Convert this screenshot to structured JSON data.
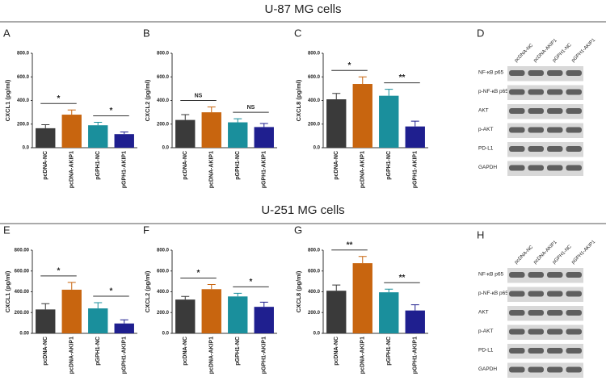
{
  "sections": [
    "U-87 MG cells",
    "U-251 MG cells"
  ],
  "chart_data": [
    {
      "type": "bar",
      "panel": "A",
      "ylabel": "CXCL1 (pg/ml)",
      "categories": [
        "pcDNA-NC",
        "pcDNA-AKIP1",
        "pGPH1-NC",
        "pGPH1-AKIP1"
      ],
      "values": [
        165,
        280,
        190,
        115
      ],
      "errors": [
        30,
        40,
        25,
        18
      ],
      "colors": [
        "#3a3a3a",
        "#c8650f",
        "#1a8f9c",
        "#1f1f8f"
      ],
      "ylim": [
        0,
        800
      ],
      "yticks": [
        {
          "value": 0,
          "label": "0.0"
        },
        {
          "value": 200,
          "label": "200.0"
        },
        {
          "value": 400,
          "label": "400.0"
        },
        {
          "value": 600,
          "label": "600.0"
        },
        {
          "value": 800,
          "label": "800.0"
        }
      ],
      "annotations": [
        {
          "text": "*",
          "between": [
            "pcDNA-NC",
            "pcDNA-AKIP1"
          ]
        },
        {
          "text": "*",
          "between": [
            "pGPH1-NC",
            "pGPH1-AKIP1"
          ]
        }
      ]
    },
    {
      "type": "bar",
      "panel": "B",
      "ylabel": "CXCL2 (pg/ml)",
      "categories": [
        "pcDNA-NC",
        "pcDNA-AKIP1",
        "pGPH1-NC",
        "pGPH1-AKIP1"
      ],
      "values": [
        235,
        300,
        215,
        175
      ],
      "errors": [
        45,
        45,
        30,
        30
      ],
      "colors": [
        "#3a3a3a",
        "#c8650f",
        "#1a8f9c",
        "#1f1f8f"
      ],
      "ylim": [
        0,
        800
      ],
      "yticks": [
        {
          "value": 0,
          "label": "0.0"
        },
        {
          "value": 200,
          "label": "200.0"
        },
        {
          "value": 400,
          "label": "400.0"
        },
        {
          "value": 600,
          "label": "600.0"
        },
        {
          "value": 800,
          "label": "800.0"
        }
      ],
      "annotations": [
        {
          "text": "NS",
          "between": [
            "pcDNA-NC",
            "pcDNA-AKIP1"
          ]
        },
        {
          "text": "NS",
          "between": [
            "pGPH1-NC",
            "pGPH1-AKIP1"
          ]
        }
      ]
    },
    {
      "type": "bar",
      "panel": "C",
      "ylabel": "CXCL8 (pg/ml)",
      "categories": [
        "pcDNA-NC",
        "pcDNA-AKIP1",
        "pGPH1-NC",
        "pGPH1-AKIP1"
      ],
      "values": [
        410,
        540,
        440,
        180
      ],
      "errors": [
        50,
        60,
        55,
        45
      ],
      "colors": [
        "#3a3a3a",
        "#c8650f",
        "#1a8f9c",
        "#1f1f8f"
      ],
      "ylim": [
        0,
        800
      ],
      "yticks": [
        {
          "value": 0,
          "label": "0.0"
        },
        {
          "value": 200,
          "label": "200.0"
        },
        {
          "value": 400,
          "label": "400.0"
        },
        {
          "value": 600,
          "label": "600.0"
        },
        {
          "value": 800,
          "label": "800.0"
        }
      ],
      "annotations": [
        {
          "text": "*",
          "between": [
            "pcDNA-NC",
            "pcDNA-AKIP1"
          ]
        },
        {
          "text": "**",
          "between": [
            "pGPH1-NC",
            "pGPH1-AKIP1"
          ]
        }
      ]
    },
    {
      "type": "bar",
      "panel": "E",
      "ylabel": "CXCL1 (pg/ml)",
      "categories": [
        "pcDNA-NC",
        "pcDNA-AKIP1",
        "pGPH1-NC",
        "pGPH1-AKIP1"
      ],
      "values": [
        230,
        420,
        240,
        95
      ],
      "errors": [
        55,
        70,
        55,
        35
      ],
      "colors": [
        "#3a3a3a",
        "#c8650f",
        "#1a8f9c",
        "#1f1f8f"
      ],
      "ylim": [
        0,
        800
      ],
      "yticks": [
        {
          "value": 0,
          "label": "0.00"
        },
        {
          "value": 200,
          "label": "200.00"
        },
        {
          "value": 400,
          "label": "400.00"
        },
        {
          "value": 600,
          "label": "600.00"
        },
        {
          "value": 800,
          "label": "800.00"
        }
      ],
      "annotations": [
        {
          "text": "*",
          "between": [
            "pcDNA-NC",
            "pcDNA-AKIP1"
          ]
        },
        {
          "text": "*",
          "between": [
            "pGPH1-NC",
            "pGPH1-AKIP1"
          ]
        }
      ]
    },
    {
      "type": "bar",
      "panel": "F",
      "ylabel": "CXCL2 (pg/ml)",
      "categories": [
        "pcDNA-NC",
        "pcDNA-AKIP1",
        "pGPH1-NC",
        "pGPH1-AKIP1"
      ],
      "values": [
        325,
        425,
        355,
        255
      ],
      "errors": [
        30,
        45,
        30,
        45
      ],
      "colors": [
        "#3a3a3a",
        "#c8650f",
        "#1a8f9c",
        "#1f1f8f"
      ],
      "ylim": [
        0,
        800
      ],
      "yticks": [
        {
          "value": 0,
          "label": "0.0"
        },
        {
          "value": 200,
          "label": "200.0"
        },
        {
          "value": 400,
          "label": "400.0"
        },
        {
          "value": 600,
          "label": "600.0"
        },
        {
          "value": 800,
          "label": "800.0"
        }
      ],
      "annotations": [
        {
          "text": "*",
          "between": [
            "pcDNA-NC",
            "pcDNA-AKIP1"
          ]
        },
        {
          "text": "*",
          "between": [
            "pGPH1-NC",
            "pGPH1-AKIP1"
          ]
        }
      ]
    },
    {
      "type": "bar",
      "panel": "G",
      "ylabel": "CXCL8 (pg/ml)",
      "categories": [
        "pcDNA-NC",
        "pcDNA-AKIP1",
        "pGPH1-NC",
        "pGPH1-AKIP1"
      ],
      "values": [
        410,
        675,
        395,
        220
      ],
      "errors": [
        55,
        65,
        30,
        55
      ],
      "colors": [
        "#3a3a3a",
        "#c8650f",
        "#1a8f9c",
        "#1f1f8f"
      ],
      "ylim": [
        0,
        800
      ],
      "yticks": [
        {
          "value": 0,
          "label": "0.0"
        },
        {
          "value": 200,
          "label": "200.0"
        },
        {
          "value": 400,
          "label": "400.0"
        },
        {
          "value": 600,
          "label": "600.0"
        },
        {
          "value": 800,
          "label": "800.0"
        }
      ],
      "annotations": [
        {
          "text": "**",
          "between": [
            "pcDNA-NC",
            "pcDNA-AKIP1"
          ]
        },
        {
          "text": "**",
          "between": [
            "pGPH1-NC",
            "pGPH1-AKIP1"
          ]
        }
      ]
    }
  ],
  "blots": [
    {
      "panel": "D",
      "lanes": [
        "pcDNA-NC",
        "pcDNA-AKIP1",
        "pGPH1-NC",
        "pGPH1-AKIP1"
      ],
      "rows": [
        "NF-κB p65",
        "p-NF-κB p65",
        "AKT",
        "p-AKT",
        "PD-L1",
        "GAPDH"
      ]
    },
    {
      "panel": "H",
      "lanes": [
        "pcDNA-NC",
        "pcDNA-AKIP1",
        "pGPH1-NC",
        "pGPH1-AKIP1"
      ],
      "rows": [
        "NF-κB p65",
        "p-NF-κB p65",
        "AKT",
        "p-AKT",
        "PD-L1",
        "GAPDH"
      ]
    }
  ]
}
